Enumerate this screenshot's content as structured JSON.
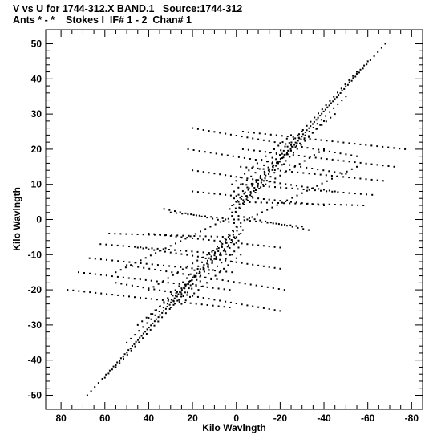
{
  "header": {
    "title": "V vs U for 1744-312.X BAND.1   Source:1744-312",
    "subtitle": "Ants * - *    Stokes I  IF# 1 - 2  Chan# 1"
  },
  "chart_data": {
    "type": "scatter",
    "title": "V vs U for 1744-312.X BAND.1   Source:1744-312",
    "subtitle": "Ants * - *    Stokes I  IF# 1 - 2  Chan# 1",
    "xlabel": "Kilo Wavlngth",
    "ylabel": "Kilo Wavlngth",
    "xlim": [
      87,
      -85
    ],
    "ylim": [
      -54,
      54
    ],
    "x_reversed": true,
    "xticks": [
      80,
      60,
      40,
      20,
      0,
      -20,
      -40,
      -60,
      -80
    ],
    "xtick_labels": [
      "80",
      "60",
      "40",
      "20",
      "0",
      "-20",
      "-40",
      "-60",
      "-80"
    ],
    "yticks": [
      50,
      40,
      30,
      20,
      10,
      0,
      -10,
      -20,
      -30,
      -40,
      -50
    ],
    "ytick_labels": [
      "50",
      "40",
      "30",
      "20",
      "10",
      "0",
      "-10",
      "-20",
      "-30",
      "-40",
      "-50"
    ],
    "grid": false,
    "marker_color": "#000000",
    "note": "uv-coverage tracks; each track is sampled symmetrically (u,v) and (-u,-v)",
    "tracks": [
      {
        "start": [
          -3,
          25
        ],
        "end": [
          -77,
          20
        ]
      },
      {
        "start": [
          -3,
          20
        ],
        "end": [
          -72,
          15
        ]
      },
      {
        "start": [
          -2,
          15
        ],
        "end": [
          -67,
          11
        ]
      },
      {
        "start": [
          -2,
          10
        ],
        "end": [
          -62,
          7
        ]
      },
      {
        "start": [
          -1,
          5
        ],
        "end": [
          -58,
          4
        ]
      },
      {
        "start": [
          -1,
          1
        ],
        "end": [
          -33,
          -3
        ]
      },
      {
        "start": [
          -1,
          0
        ],
        "end": [
          -30,
          -2
        ]
      },
      {
        "start": [
          20,
          26
        ],
        "end": [
          -55,
          18
        ]
      },
      {
        "start": [
          22,
          20
        ],
        "end": [
          -50,
          13
        ]
      },
      {
        "start": [
          20,
          14
        ],
        "end": [
          -45,
          8
        ]
      },
      {
        "start": [
          20,
          8
        ],
        "end": [
          -40,
          4
        ]
      },
      {
        "start": [
          2,
          2
        ],
        "end": [
          -68,
          50
        ]
      },
      {
        "start": [
          2,
          1
        ],
        "end": [
          -60,
          45
        ]
      },
      {
        "start": [
          3,
          3
        ],
        "end": [
          -55,
          42
        ]
      },
      {
        "start": [
          2,
          4
        ],
        "end": [
          -50,
          35
        ]
      },
      {
        "start": [
          1,
          6
        ],
        "end": [
          -45,
          30
        ]
      },
      {
        "start": [
          0,
          2
        ],
        "end": [
          -40,
          28
        ]
      },
      {
        "start": [
          1,
          8
        ],
        "end": [
          -30,
          25
        ]
      },
      {
        "start": [
          2,
          10
        ],
        "end": [
          -25,
          24
        ]
      },
      {
        "start": [
          0,
          5
        ],
        "end": [
          -40,
          20
        ]
      },
      {
        "start": [
          -5,
          0
        ],
        "end": [
          -55,
          15
        ]
      }
    ]
  }
}
